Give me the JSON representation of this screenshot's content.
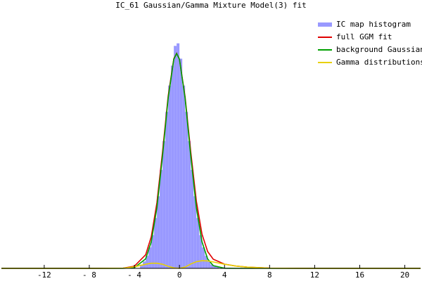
{
  "chart_data": {
    "type": "histogram",
    "title": "IC_61 Gaussian/Gamma Mixture Model(3) fit",
    "name": "IC map histogram",
    "color": "#9999ff",
    "bins": [
      -3.5,
      -3.25,
      -3,
      -2.75,
      -2.5,
      -2.25,
      -2,
      -1.75,
      -1.5,
      -1.25,
      -1,
      -0.75,
      -0.5,
      -0.25,
      0,
      0.25,
      0.5,
      0.75,
      1,
      1.25,
      1.5,
      1.75,
      2,
      2.25,
      2.5,
      2.75,
      3,
      3.25,
      3.5
    ],
    "values": [
      0.015,
      0.027,
      0.049,
      0.082,
      0.13,
      0.197,
      0.282,
      0.385,
      0.498,
      0.612,
      0.715,
      0.793,
      0.87,
      0.88,
      0.82,
      0.715,
      0.612,
      0.498,
      0.385,
      0.282,
      0.197,
      0.13,
      0.082,
      0.049,
      0.027,
      0.015,
      0.01,
      0.007
    ],
    "series": [
      {
        "name": "full GGM fit",
        "color": "#e00000",
        "x": [
          -15.8,
          -8,
          -5,
          -4,
          -3,
          -2.5,
          -2,
          -1.5,
          -1,
          -0.5,
          -0.25,
          0,
          0.5,
          1,
          1.5,
          2,
          2.5,
          3,
          4,
          5,
          6,
          8,
          12,
          21.4
        ],
        "values": [
          0,
          0,
          0.001,
          0.0085,
          0.053,
          0.124,
          0.257,
          0.456,
          0.674,
          0.82,
          0.841,
          0.818,
          0.671,
          0.457,
          0.263,
          0.134,
          0.066,
          0.0357,
          0.0165,
          0.009,
          0.005,
          0.001,
          0,
          0
        ]
      },
      {
        "name": "background Gaussian",
        "color": "#00a000",
        "x": [
          -15.8,
          -8,
          -5,
          -4,
          -3,
          -2.5,
          -2,
          -1.5,
          -1,
          -0.5,
          -0.25,
          0,
          0.5,
          1,
          1.5,
          2,
          2.5,
          3,
          4,
          5,
          6,
          8,
          12,
          21.4
        ],
        "values": [
          0,
          0,
          0,
          0.0025,
          0.037,
          0.104,
          0.237,
          0.44,
          0.666,
          0.818,
          0.84,
          0.818,
          0.666,
          0.44,
          0.237,
          0.104,
          0.037,
          0.0107,
          0.0005,
          0,
          0,
          0,
          0,
          0
        ]
      },
      {
        "name": "Gamma distributions",
        "color": "#e8d000",
        "x": [
          -15.8,
          -8,
          -5,
          -4,
          -3,
          -2.5,
          -2,
          -1.5,
          -1,
          -0.5,
          -0.25,
          0,
          0.5,
          1,
          1.5,
          2,
          2.5,
          3,
          4,
          5,
          6,
          8,
          12,
          21.4
        ],
        "values": [
          0,
          0,
          0.001,
          0.006,
          0.016,
          0.02,
          0.02,
          0.016,
          0.008,
          0.002,
          0.001,
          0,
          0.005,
          0.017,
          0.026,
          0.03,
          0.029,
          0.025,
          0.016,
          0.009,
          0.005,
          0.001,
          0,
          0
        ]
      }
    ],
    "xlim": [
      -15.8,
      21.4
    ],
    "ylim": [
      0,
      1
    ],
    "xticks": [
      -12,
      {
        "value": -8,
        "label": "- 8"
      },
      {
        "value": -4,
        "label": "- 4"
      },
      0,
      4,
      8,
      12,
      16,
      20
    ],
    "legend": "top-right"
  }
}
